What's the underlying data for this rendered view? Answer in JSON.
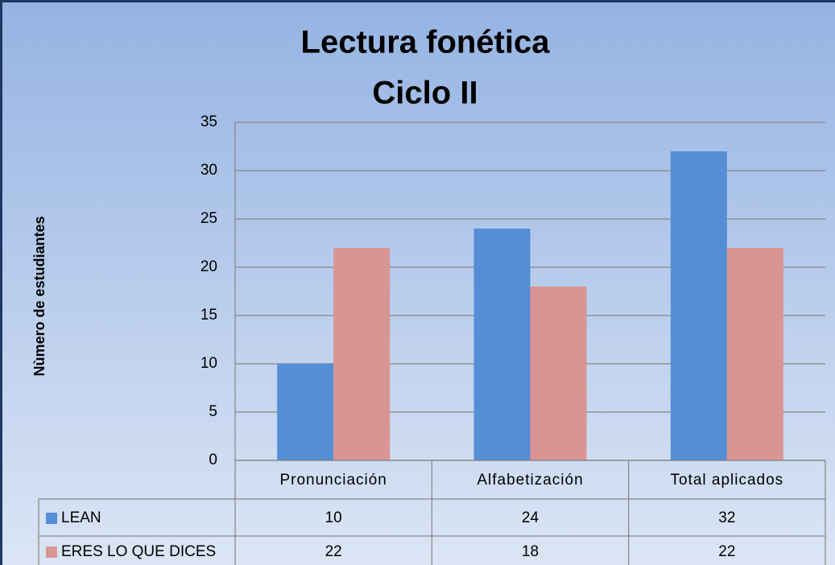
{
  "chart_data": {
    "type": "bar",
    "title": "Lectura fonética",
    "subtitle": "Ciclo II",
    "y_label": "Nùmero de estudiantes",
    "categories": [
      "Pronunciación",
      "Alfabetización",
      "Total aplicados"
    ],
    "series": [
      {
        "name": "LEAN",
        "color": "#558ed5",
        "values": [
          10,
          24,
          32
        ]
      },
      {
        "name": "ERES LO QUE DICES",
        "color": "#d99594",
        "values": [
          22,
          18,
          22
        ]
      }
    ],
    "ylim": [
      0,
      35
    ],
    "yticks": [
      0,
      5,
      10,
      15,
      20,
      25,
      30,
      35
    ],
    "grid": true
  }
}
